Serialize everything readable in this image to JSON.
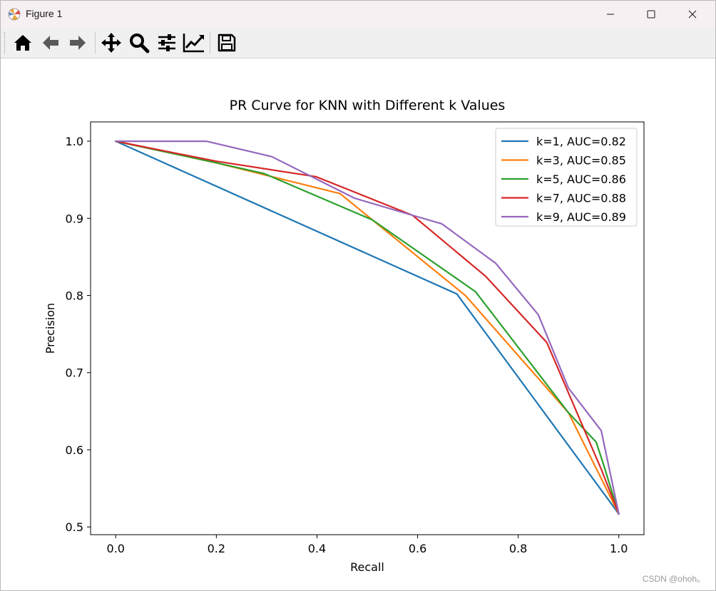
{
  "window": {
    "title": "Figure 1",
    "controls": [
      "minimize",
      "maximize",
      "close"
    ]
  },
  "toolbar": {
    "buttons": [
      {
        "name": "home-icon"
      },
      {
        "name": "back-icon"
      },
      {
        "name": "forward-icon"
      },
      {
        "name": "pan-icon"
      },
      {
        "name": "zoom-icon"
      },
      {
        "name": "configure-subplots-icon"
      },
      {
        "name": "edit-axis-icon"
      },
      {
        "name": "save-icon"
      }
    ]
  },
  "watermark": "CSDN @ohoh。",
  "chart_data": {
    "type": "line",
    "title": "PR Curve for KNN with Different k Values",
    "xlabel": "Recall",
    "ylabel": "Precision",
    "xlim": [
      -0.05,
      1.05
    ],
    "ylim": [
      0.49,
      1.025
    ],
    "xticks": [
      "0.0",
      "0.2",
      "0.4",
      "0.6",
      "0.8",
      "1.0"
    ],
    "yticks": [
      "0.5",
      "0.6",
      "0.7",
      "0.8",
      "0.9",
      "1.0"
    ],
    "grid": false,
    "legend_position": "top-right",
    "series": [
      {
        "name": "k=1, AUC=0.82",
        "color": "#1f77b4",
        "x": [
          0.0,
          0.678,
          1.0
        ],
        "y": [
          1.0,
          0.802,
          0.517
        ]
      },
      {
        "name": "k=3, AUC=0.85",
        "color": "#ff7f0e",
        "x": [
          0.0,
          0.2,
          0.446,
          0.51,
          0.695,
          0.9,
          1.0
        ],
        "y": [
          1.0,
          0.972,
          0.932,
          0.898,
          0.8,
          0.648,
          0.517
        ]
      },
      {
        "name": "k=5, AUC=0.86",
        "color": "#2ca02c",
        "x": [
          0.0,
          0.2,
          0.295,
          0.51,
          0.715,
          0.9,
          0.955,
          0.97,
          1.0
        ],
        "y": [
          1.0,
          0.972,
          0.958,
          0.898,
          0.805,
          0.648,
          0.61,
          0.58,
          0.517
        ]
      },
      {
        "name": "k=7, AUC=0.88",
        "color": "#d62728",
        "x": [
          0.0,
          0.2,
          0.398,
          0.59,
          0.735,
          0.857,
          0.965,
          1.0
        ],
        "y": [
          1.0,
          0.974,
          0.954,
          0.904,
          0.825,
          0.739,
          0.575,
          0.517
        ]
      },
      {
        "name": "k=9, AUC=0.89",
        "color": "#9467bd",
        "x": [
          0.0,
          0.18,
          0.31,
          0.475,
          0.59,
          0.648,
          0.755,
          0.84,
          0.9,
          0.965,
          1.0
        ],
        "y": [
          1.0,
          1.0,
          0.98,
          0.926,
          0.904,
          0.893,
          0.842,
          0.775,
          0.68,
          0.625,
          0.517
        ]
      }
    ]
  }
}
